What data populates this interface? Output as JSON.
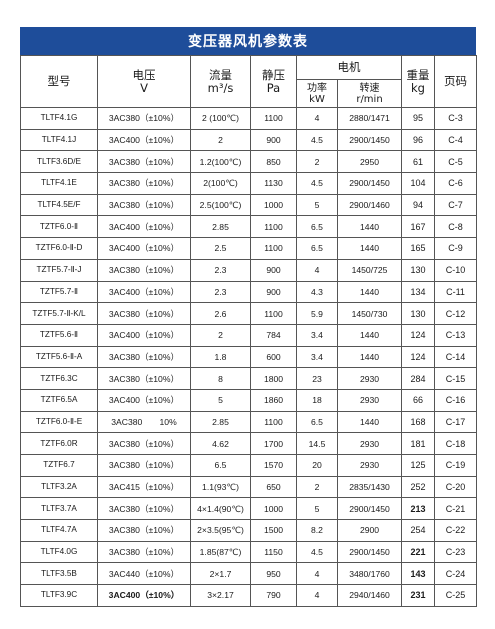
{
  "title": "变压器风机参数表",
  "headers": {
    "model": "型号",
    "voltage": "电压",
    "voltage_unit": "V",
    "flow": "流量",
    "flow_unit": "m³/s",
    "pressure": "静压",
    "pressure_unit": "Pa",
    "motor": "电机",
    "power": "功率",
    "power_unit": "kW",
    "speed": "转速",
    "speed_unit": "r/min",
    "weight": "重量",
    "weight_unit": "kg",
    "page": "页码"
  },
  "rows": [
    {
      "model": "TLTF4.1G",
      "voltage": "3AC380（±10%）",
      "flow": "2 (100℃)",
      "pressure": "1100",
      "power": "4",
      "speed": "2880/1471",
      "weight": "95",
      "page": "C-3"
    },
    {
      "model": "TLTF4.1J",
      "voltage": "3AC400（±10%）",
      "flow": "2",
      "pressure": "900",
      "power": "4.5",
      "speed": "2900/1450",
      "weight": "96",
      "page": "C-4"
    },
    {
      "model": "TLTF3.6D/E",
      "voltage": "3AC380（±10%）",
      "flow": "1.2(100℃)",
      "pressure": "850",
      "power": "2",
      "speed": "2950",
      "weight": "61",
      "page": "C-5"
    },
    {
      "model": "TLTF4.1E",
      "voltage": "3AC380（±10%）",
      "flow": "2(100℃)",
      "pressure": "1130",
      "power": "4.5",
      "speed": "2900/1450",
      "weight": "104",
      "page": "C-6"
    },
    {
      "model": "TLTF4.5E/F",
      "voltage": "3AC380（±10%）",
      "flow": "2.5(100℃)",
      "pressure": "1000",
      "power": "5",
      "speed": "2900/1460",
      "weight": "94",
      "page": "C-7"
    },
    {
      "model": "TZTF6.0-Ⅱ",
      "voltage": "3AC400（±10%）",
      "flow": "2.85",
      "pressure": "1100",
      "power": "6.5",
      "speed": "1440",
      "weight": "167",
      "page": "C-8"
    },
    {
      "model": "TZTF6.0-Ⅱ-D",
      "voltage": "3AC400（±10%）",
      "flow": "2.5",
      "pressure": "1100",
      "power": "6.5",
      "speed": "1440",
      "weight": "165",
      "page": "C-9"
    },
    {
      "model": "TZTF5.7-Ⅱ-J",
      "voltage": "3AC380（±10%）",
      "flow": "2.3",
      "pressure": "900",
      "power": "4",
      "speed": "1450/725",
      "weight": "130",
      "page": "C-10"
    },
    {
      "model": "TZTF5.7-Ⅱ",
      "voltage": "3AC400（±10%）",
      "flow": "2.3",
      "pressure": "900",
      "power": "4.3",
      "speed": "1440",
      "weight": "134",
      "page": "C-11"
    },
    {
      "model": "TZTF5.7-Ⅱ-K/L",
      "voltage": "3AC380（±10%）",
      "flow": "2.6",
      "pressure": "1100",
      "power": "5.9",
      "speed": "1450/730",
      "weight": "130",
      "page": "C-12"
    },
    {
      "model": "TZTF5.6-Ⅱ",
      "voltage": "3AC400（±10%）",
      "flow": "2",
      "pressure": "784",
      "power": "3.4",
      "speed": "1440",
      "weight": "124",
      "page": "C-13"
    },
    {
      "model": "TZTF5.6-Ⅱ-A",
      "voltage": "3AC380（±10%）",
      "flow": "1.8",
      "pressure": "600",
      "power": "3.4",
      "speed": "1440",
      "weight": "124",
      "page": "C-14"
    },
    {
      "model": "TZTF6.3C",
      "voltage": "3AC380（±10%）",
      "flow": "8",
      "pressure": "1800",
      "power": "23",
      "speed": "2930",
      "weight": "284",
      "page": "C-15"
    },
    {
      "model": "TZTF6.5A",
      "voltage": "3AC400（±10%）",
      "flow": "5",
      "pressure": "1860",
      "power": "18",
      "speed": "2930",
      "weight": "66",
      "page": "C-16"
    },
    {
      "model": "TZTF6.0-Ⅱ-E",
      "voltage": "3AC380　　10%",
      "flow": "2.85",
      "pressure": "1100",
      "power": "6.5",
      "speed": "1440",
      "weight": "168",
      "page": "C-17"
    },
    {
      "model": "TZTF6.0R",
      "voltage": "3AC380（±10%）",
      "flow": "4.62",
      "pressure": "1700",
      "power": "14.5",
      "speed": "2930",
      "weight": "181",
      "page": "C-18"
    },
    {
      "model": "TZTF6.7",
      "voltage": "3AC380（±10%）",
      "flow": "6.5",
      "pressure": "1570",
      "power": "20",
      "speed": "2930",
      "weight": "125",
      "page": "C-19"
    },
    {
      "model": "TLTF3.2A",
      "voltage": "3AC415（±10%）",
      "flow": "1.1(93℃)",
      "pressure": "650",
      "power": "2",
      "speed": "2835/1430",
      "weight": "252",
      "page": "C-20"
    },
    {
      "model": "TLTF3.7A",
      "voltage": "3AC380（±10%）",
      "flow": "4×1.4(90℃)",
      "pressure": "1000",
      "power": "5",
      "speed": "2900/1450",
      "weight": "213",
      "page": "C-21"
    },
    {
      "model": "TLTF4.7A",
      "voltage": "3AC380（±10%）",
      "flow": "2×3.5(95℃)",
      "pressure": "1500",
      "power": "8.2",
      "speed": "2900",
      "weight": "254",
      "page": "C-22"
    },
    {
      "model": "TLTF4.0G",
      "voltage": "3AC380（±10%）",
      "flow": "1.85(87℃)",
      "pressure": "1150",
      "power": "4.5",
      "speed": "2900/1450",
      "weight": "221",
      "page": "C-23"
    },
    {
      "model": "TLTF3.5B",
      "voltage": "3AC440（±10%）",
      "flow": "2×1.7",
      "pressure": "950",
      "power": "4",
      "speed": "3480/1760",
      "weight": "143",
      "page": "C-24"
    },
    {
      "model": "TLTF3.9C",
      "voltage": "3AC400（±10%）",
      "flow": "3×2.17",
      "pressure": "790",
      "power": "4",
      "speed": "2940/1460",
      "weight": "231",
      "page": "C-25"
    }
  ],
  "bold_weight_rows": [
    18,
    20,
    21,
    22
  ],
  "bold_voltage_rows": [
    22
  ]
}
